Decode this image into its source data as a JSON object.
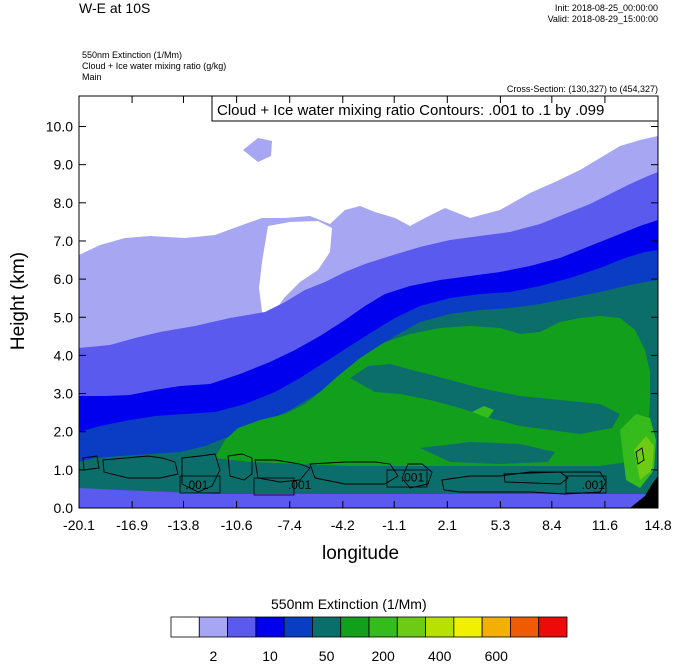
{
  "header": {
    "title": "W-E at 10S",
    "init": "Init: 2018-08-25_00:00:00",
    "valid": "Valid: 2018-08-29_15:00:00",
    "field_1": "550nm Extinction   (1/Mm)",
    "field_2": "Cloud + Ice water mixing ratio   (g/kg)",
    "field_3": "Main",
    "cross_section": "Cross-Section: (130,327) to (454,327)"
  },
  "chart_data": {
    "type": "heatmap",
    "contour_label": "Cloud + Ice water mixing ratio Contours: .001 to .1 by .099",
    "xlabel": "longitude",
    "ylabel": "Height (km)",
    "xlim": [
      -20.1,
      14.8
    ],
    "ylim": [
      0.0,
      10.8
    ],
    "x_ticks": [
      "-20.1",
      "-16.9",
      "-13.8",
      "-10.6",
      "-7.4",
      "-4.2",
      "-1.1",
      "2.1",
      "5.3",
      "8.4",
      "11.6",
      "14.8"
    ],
    "y_ticks": [
      "0.0",
      "1.0",
      "2.0",
      "3.0",
      "4.0",
      "5.0",
      "6.0",
      "7.0",
      "8.0",
      "9.0",
      "10.0"
    ],
    "contour_value_labels": [
      {
        "text": ".001",
        "x": -13.0,
        "y": 0.6
      },
      {
        "text": ".001",
        "x": -6.8,
        "y": 0.6
      },
      {
        "text": ".001",
        "x": 0.0,
        "y": 0.8
      },
      {
        "text": ".001",
        "x": 10.9,
        "y": 0.6
      }
    ],
    "colorbar": {
      "title": "550nm Extinction  (1/Mm)",
      "colors": [
        "#ffffff",
        "#a6a6f2",
        "#5a5aee",
        "#0000ee",
        "#0a3cc4",
        "#0b6e6a",
        "#12a01c",
        "#35bb1c",
        "#6ccb12",
        "#b8e000",
        "#f0f000",
        "#f4b000",
        "#f05a00",
        "#ee0a0a"
      ],
      "labels": [
        "2",
        "10",
        "50",
        "200",
        "400",
        "600"
      ]
    },
    "grid": false
  }
}
